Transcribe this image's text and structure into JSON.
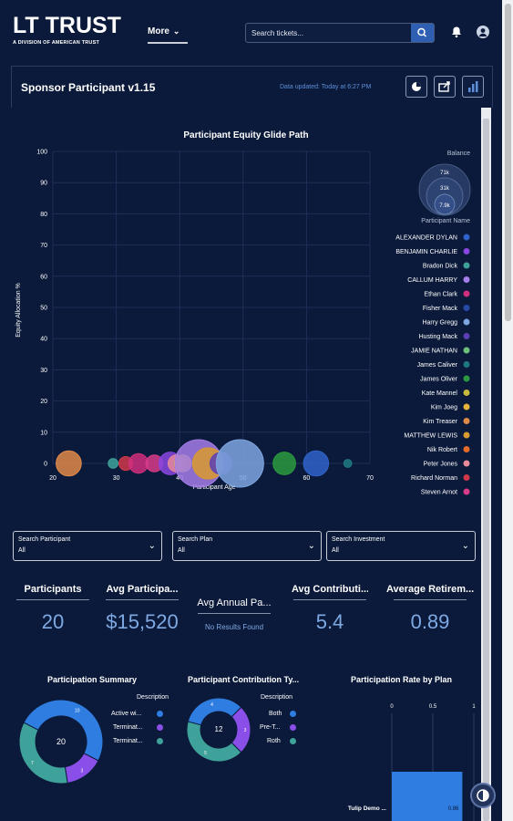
{
  "header": {
    "logo_text": "LT TRUST",
    "logo_sub": "A DIVISION OF AMERICAN TRUST",
    "more_label": "More",
    "search_placeholder": "Search tickets..."
  },
  "card": {
    "title": "Sponsor Participant v1.15",
    "updated": "Data updated: Today at 6:27 PM"
  },
  "chart_data": {
    "type": "scatter",
    "title": "Participant Equity Glide Path",
    "xlabel": "Participant Age",
    "ylabel": "Equity Allocation %",
    "xlim": [
      20,
      70
    ],
    "ylim": [
      0,
      100
    ],
    "x_ticks": [
      "20",
      "30",
      "40",
      "50",
      "60",
      "70"
    ],
    "y_ticks": [
      "0",
      "10",
      "20",
      "30",
      "40",
      "50",
      "60",
      "70",
      "80",
      "90",
      "100"
    ],
    "size_legend_title": "Balance",
    "size_legend_values": [
      "71k",
      "31k",
      "7.9k"
    ],
    "legend_title": "Participant Name",
    "series": [
      {
        "name": "ALEXANDER DYLAN",
        "color": "#2f63c9"
      },
      {
        "name": "BENJAMIN CHARLIE",
        "color": "#8a46e0"
      },
      {
        "name": "Bradon Dick",
        "color": "#3ea29a"
      },
      {
        "name": "CALLUM HARRY",
        "color": "#a57de8"
      },
      {
        "name": "Ethan Clark",
        "color": "#d02f7c"
      },
      {
        "name": "Fisher Mack",
        "color": "#244aa6"
      },
      {
        "name": "Harry Gregg",
        "color": "#7ea6e0"
      },
      {
        "name": "Husting Mack",
        "color": "#5b3fb5"
      },
      {
        "name": "JAMIE NATHAN",
        "color": "#6cc27a"
      },
      {
        "name": "James Caliver",
        "color": "#1f7a80"
      },
      {
        "name": "James Oliver",
        "color": "#2b9a3f"
      },
      {
        "name": "Kate Mannel",
        "color": "#c8b93c"
      },
      {
        "name": "Kim Joeg",
        "color": "#e3b33a"
      },
      {
        "name": "Kim Treaser",
        "color": "#e08a4a"
      },
      {
        "name": "MATTHEW LEWIS",
        "color": "#d99a2e"
      },
      {
        "name": "Nik Robert",
        "color": "#e56b2c"
      },
      {
        "name": "Peter Jones",
        "color": "#e58a9a"
      },
      {
        "name": "Richard Norman",
        "color": "#d0384a"
      },
      {
        "name": "Steven Arnot",
        "color": "#d83b8a"
      }
    ],
    "points": [
      {
        "x": 22.5,
        "y": 0,
        "size": 20000,
        "color": "#e08a4a"
      },
      {
        "x": 29.5,
        "y": 0,
        "size": 3000,
        "color": "#3ea29a"
      },
      {
        "x": 31.5,
        "y": 0,
        "size": 6000,
        "color": "#d0384a"
      },
      {
        "x": 33.5,
        "y": 0,
        "size": 12000,
        "color": "#d02f7c"
      },
      {
        "x": 36,
        "y": 0,
        "size": 9000,
        "color": "#d83b8a"
      },
      {
        "x": 38.5,
        "y": 0,
        "size": 16000,
        "color": "#8a46e0"
      },
      {
        "x": 39.5,
        "y": 0,
        "size": 9000,
        "color": "#e58a9a"
      },
      {
        "x": 40.5,
        "y": 0,
        "size": 9000,
        "color": "#e3b33a"
      },
      {
        "x": 43,
        "y": 0,
        "size": 71000,
        "color": "#a57de8"
      },
      {
        "x": 44.5,
        "y": 0,
        "size": 31000,
        "color": "#d99a2e"
      },
      {
        "x": 46.5,
        "y": 0,
        "size": 15000,
        "color": "#5b3fb5"
      },
      {
        "x": 49.5,
        "y": 0,
        "size": 71000,
        "color": "#7ea6e0"
      },
      {
        "x": 56.5,
        "y": 0,
        "size": 16000,
        "color": "#2b9a3f"
      },
      {
        "x": 61.5,
        "y": 0,
        "size": 20000,
        "color": "#2f63c9"
      },
      {
        "x": 66.5,
        "y": 0,
        "size": 2000,
        "color": "#1f7a80"
      }
    ]
  },
  "filters": [
    {
      "label": "Search Participant",
      "value": "All"
    },
    {
      "label": "Search Plan",
      "value": "All"
    },
    {
      "label": "Search Investment",
      "value": "All"
    }
  ],
  "kpis": [
    {
      "title": "Participants",
      "value": "20"
    },
    {
      "title": "Avg Participa...",
      "value": "$15,520"
    },
    {
      "title": "Avg Annual Pa...",
      "value": "No Results Found"
    },
    {
      "title": "Avg Contributi...",
      "value": "5.4"
    },
    {
      "title": "Average Retirem...",
      "value": "0.89"
    }
  ],
  "participation_summary": {
    "title": "Participation Summary",
    "center": "20",
    "legend_title": "Description",
    "items": [
      {
        "label": "Active wi...",
        "value": 10,
        "color": "#2f7de0"
      },
      {
        "label": "Terminat...",
        "value": 3,
        "color": "#8a4fe8"
      },
      {
        "label": "Terminat...",
        "value": 7,
        "color": "#3ea29a"
      }
    ],
    "segment_labels": [
      "10",
      "3",
      "7"
    ]
  },
  "contribution_type": {
    "title": "Participant Contribution Ty...",
    "center": "12",
    "legend_title": "Description",
    "items": [
      {
        "label": "Both",
        "value": 4,
        "color": "#2f7de0"
      },
      {
        "label": "Pre-T...",
        "value": 3,
        "color": "#8a4fe8"
      },
      {
        "label": "Roth",
        "value": 5,
        "color": "#3ea29a"
      }
    ],
    "segment_labels": [
      "4",
      "3",
      "5"
    ]
  },
  "rate_by_plan": {
    "title": "Participation Rate by Plan",
    "ticks": [
      "0",
      "0.5",
      "1"
    ],
    "bars": [
      {
        "label": "Tulip Demo ...",
        "value": 0.86,
        "value_label": "0.86"
      }
    ],
    "bar_color": "#2f7de0"
  }
}
